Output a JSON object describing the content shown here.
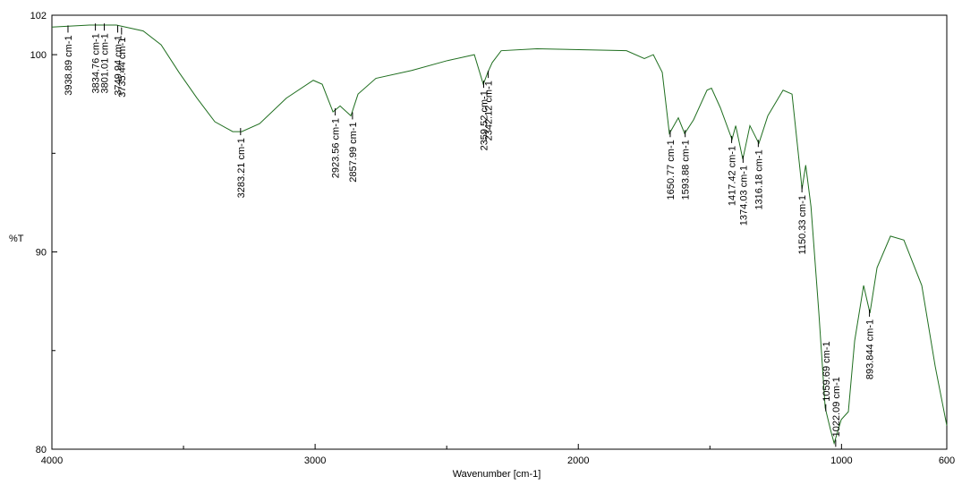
{
  "chart_data": {
    "type": "line",
    "xlabel": "Wavenumber [cm-1]",
    "ylabel": "%T",
    "xlim": [
      4000,
      600
    ],
    "ylim": [
      80,
      102
    ],
    "xticks": [
      4000,
      3000,
      2000,
      1000,
      600
    ],
    "xminorticks": [
      3500,
      2500,
      1500
    ],
    "yticks": [
      80,
      90,
      100,
      102
    ],
    "yminorticks": [
      85,
      95
    ],
    "x": [
      4000,
      3857,
      3755,
      3653,
      3585,
      3517,
      3449,
      3381,
      3313,
      3279,
      3211,
      3109,
      3007,
      2973,
      2932,
      2905,
      2864,
      2837,
      2769,
      2633,
      2497,
      2395,
      2361,
      2344,
      2327,
      2293,
      2157,
      1817,
      1749,
      1715,
      1681,
      1654,
      1620,
      1596,
      1562,
      1511,
      1494,
      1460,
      1416,
      1402,
      1375,
      1348,
      1314,
      1280,
      1222,
      1188,
      1150,
      1136,
      1116,
      1086,
      1062,
      1042,
      1028,
      1001,
      974,
      950,
      916,
      892,
      865,
      814,
      763,
      695,
      644,
      600
    ],
    "series": [
      {
        "color": "#1f6e1f",
        "values": [
          101.4,
          101.5,
          101.5,
          101.2,
          100.5,
          99.1,
          97.8,
          96.6,
          96.1,
          96.1,
          96.5,
          97.8,
          98.7,
          98.5,
          97.1,
          97.4,
          96.9,
          98.0,
          98.8,
          99.2,
          99.7,
          100.0,
          98.5,
          99.1,
          99.6,
          100.2,
          100.3,
          100.2,
          99.8,
          100.0,
          99.1,
          96.0,
          96.8,
          96.0,
          96.7,
          98.2,
          98.3,
          97.3,
          95.7,
          96.4,
          94.7,
          96.4,
          95.5,
          96.9,
          98.2,
          98.0,
          93.2,
          94.4,
          92.3,
          86.9,
          82.1,
          81.0,
          80.3,
          81.5,
          81.9,
          85.5,
          88.3,
          86.9,
          89.2,
          90.8,
          90.6,
          88.3,
          84.2,
          81.2
        ]
      }
    ],
    "peaks": [
      {
        "x": 3938.89,
        "y": 101.3,
        "label": "3938.89 cm-1"
      },
      {
        "x": 3834.76,
        "y": 101.4,
        "label": "3834.76 cm-1"
      },
      {
        "x": 3801.01,
        "y": 101.4,
        "label": "3801.01 cm-1"
      },
      {
        "x": 3749.94,
        "y": 101.3,
        "label": "3749.94 cm-1"
      },
      {
        "x": 3735.44,
        "y": 101.2,
        "label": "3735.44 cm-1"
      },
      {
        "x": 3283.21,
        "y": 96.1,
        "label": "3283.21 cm-1"
      },
      {
        "x": 2923.56,
        "y": 97.1,
        "label": "2923.56 cm-1"
      },
      {
        "x": 2857.99,
        "y": 96.9,
        "label": "2857.99 cm-1"
      },
      {
        "x": 2359.52,
        "y": 98.5,
        "label": "2359.52 cm-1"
      },
      {
        "x": 2342.12,
        "y": 99.0,
        "label": "2342.12 cm-1"
      },
      {
        "x": 1650.77,
        "y": 96.0,
        "label": "1650.77 cm-1"
      },
      {
        "x": 1593.88,
        "y": 96.0,
        "label": "1593.88 cm-1"
      },
      {
        "x": 1417.42,
        "y": 95.7,
        "label": "1417.42 cm-1"
      },
      {
        "x": 1374.03,
        "y": 94.7,
        "label": "1374.03 cm-1"
      },
      {
        "x": 1316.18,
        "y": 95.5,
        "label": "1316.18 cm-1"
      },
      {
        "x": 1150.33,
        "y": 93.2,
        "label": "1150.33 cm-1"
      },
      {
        "x": 1059.69,
        "y": 82.1,
        "label": "1059.69 cm-1"
      },
      {
        "x": 1022.09,
        "y": 80.3,
        "label": "1022.09 cm-1"
      },
      {
        "x": 893.844,
        "y": 86.9,
        "label": "893.844 cm-1"
      }
    ]
  }
}
